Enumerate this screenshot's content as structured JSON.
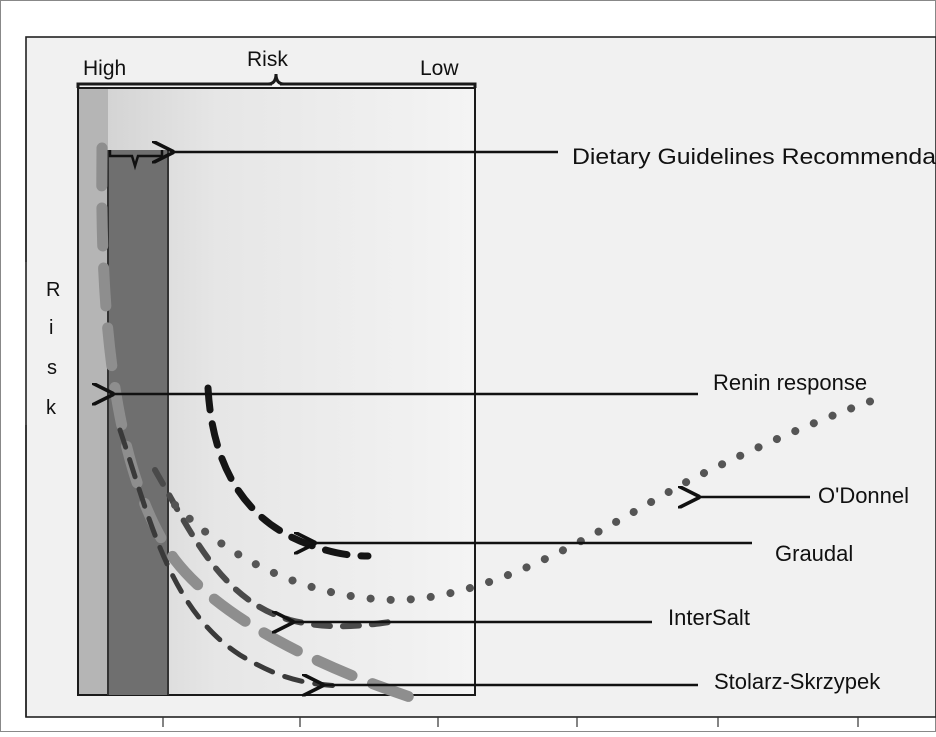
{
  "top_axis": {
    "title": "Risk",
    "left_label": "High",
    "right_label": "Low"
  },
  "y_axis": {
    "letters": [
      "R",
      "i",
      "s",
      "k"
    ]
  },
  "labels": {
    "dietary": "Dietary Guidelines  Recommenda",
    "renin": "Renin response",
    "odonnel": "O'Donnel",
    "graudal": "Graudal",
    "intersalt": "InterSalt",
    "stolarz": "Stolarz-Skrzypek"
  },
  "colors": {
    "frame": "#1a1a1a",
    "dark_band": "#6e6e6e",
    "light_band": "#b4b4b4",
    "panel_light": "#f3f3f3",
    "curve_dark": "#1c1c1c",
    "curve_mid": "#555555",
    "curve_gray": "#8a8a8a"
  }
}
